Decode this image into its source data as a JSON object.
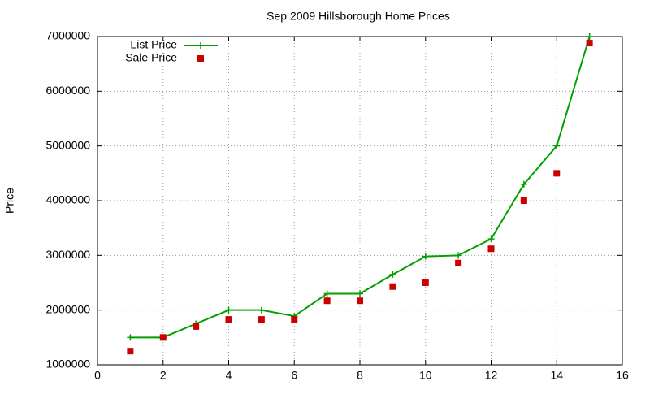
{
  "chart_data": {
    "type": "line",
    "title": "Sep 2009 Hillsborough Home Prices",
    "y_label": "Price",
    "x": [
      1,
      2,
      3,
      4,
      5,
      6,
      7,
      8,
      9,
      10,
      11,
      12,
      13,
      14,
      15
    ],
    "series": [
      {
        "name": "List Price",
        "color": "#00a000",
        "mode": "lines+markers",
        "values": [
          1500000,
          1500000,
          1750000,
          2000000,
          2000000,
          1890000,
          2300000,
          2300000,
          2650000,
          2980000,
          3000000,
          3300000,
          4300000,
          5000000,
          7000000
        ]
      },
      {
        "name": "Sale Price",
        "color": "#cc0000",
        "mode": "markers",
        "values": [
          1250000,
          1500000,
          1700000,
          1830000,
          1830000,
          1830000,
          2170000,
          2170000,
          2430000,
          2500000,
          2860000,
          3120000,
          4000000,
          4500000,
          6880000
        ]
      }
    ],
    "xlim": [
      0,
      16
    ],
    "xticks": [
      0,
      2,
      4,
      6,
      8,
      10,
      12,
      14,
      16
    ],
    "ylim": [
      1000000,
      7000000
    ],
    "yticks": [
      1000000,
      2000000,
      3000000,
      4000000,
      5000000,
      6000000,
      7000000
    ],
    "grid": true,
    "legend": "top-left"
  }
}
